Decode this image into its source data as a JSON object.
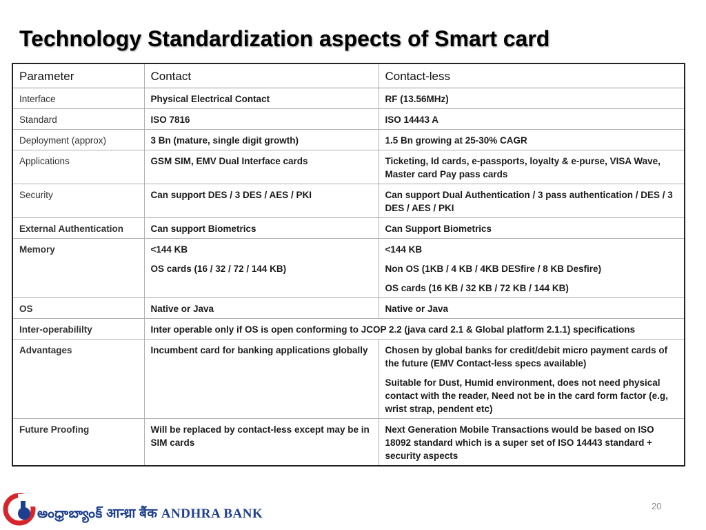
{
  "slide": {
    "title": "Technology Standardization aspects of Smart card",
    "page_number": "20",
    "footer_logo_text": "అంధ్రాబ్యాంక్  आन्ध्रा बैंक  ANDHRA BANK"
  },
  "table": {
    "headers": [
      "Parameter",
      "Contact",
      "Contact-less"
    ],
    "rows": [
      {
        "param": "Interface",
        "contact": [
          "Physical Electrical Contact"
        ],
        "contactless": [
          "RF (13.56MHz)"
        ]
      },
      {
        "param": "Standard",
        "contact": [
          "ISO 7816"
        ],
        "contactless": [
          "ISO 14443 A"
        ]
      },
      {
        "param": "Deployment (approx)",
        "contact": [
          "3 Bn (mature, single digit growth)"
        ],
        "contactless": [
          "1.5 Bn growing at 25-30% CAGR"
        ]
      },
      {
        "param": "Applications",
        "contact": [
          "GSM SIM, EMV Dual Interface cards"
        ],
        "contactless": [
          "Ticketing, Id cards, e-passports, loyalty &  e-purse,  VISA Wave, Master card Pay pass cards"
        ]
      },
      {
        "param": "Security",
        "contact": [
          "Can support DES / 3 DES / AES / PKI"
        ],
        "contactless": [
          "Can support Dual Authentication / 3 pass authentication / DES / 3 DES / AES / PKI"
        ]
      },
      {
        "param": "External Authentication",
        "contact": [
          "Can support Biometrics"
        ],
        "contactless": [
          "Can Support Biometrics"
        ]
      },
      {
        "param": "Memory",
        "contact": [
          "<144 KB",
          "OS cards (16 / 32 / 72 / 144 KB)"
        ],
        "contactless": [
          "<144 KB",
          "Non OS (1KB / 4 KB / 4KB DESfire / 8 KB Desfire)",
          "OS cards (16 KB / 32 KB / 72 KB / 144 KB)"
        ]
      },
      {
        "param": "OS",
        "contact": [
          "Native or Java"
        ],
        "contactless": [
          "Native or Java"
        ]
      },
      {
        "param": "Inter-operabililty",
        "merged": "Inter operable only if OS is open conforming to JCOP 2.2 (java card 2.1 & Global platform 2.1.1) specifications"
      },
      {
        "param": "Advantages",
        "contact": [
          "Incumbent card for banking applications globally"
        ],
        "contactless": [
          "Chosen by global banks for credit/debit micro payment cards of the future (EMV Contact-less specs available)",
          "Suitable for Dust, Humid environment, does not need physical contact with the reader, Need not be in the card form factor (e.g, wrist strap, pendent etc)"
        ]
      },
      {
        "param": "Future Proofing",
        "contact": [
          "Will be replaced by contact-less except may be in SIM cards"
        ],
        "contactless": [
          "Next Generation Mobile Transactions would be based on ISO 18092 standard which is a super set of ISO 14443 standard + security aspects"
        ]
      }
    ]
  },
  "colors": {
    "logo_blue": "#1d3f8f",
    "logo_red": "#d7262b"
  }
}
